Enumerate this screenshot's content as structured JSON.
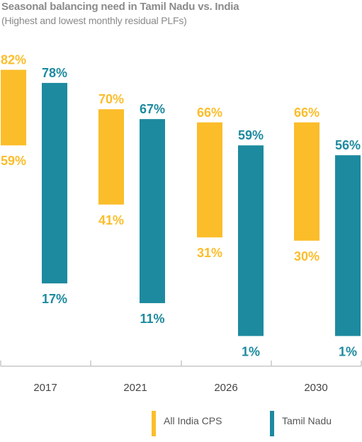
{
  "chart_data": {
    "type": "bar",
    "title": "Seasonal balancing need in Tamil Nadu vs. India",
    "subtitle": "(Highest and lowest monthly residual PLFs)",
    "categories": [
      "2017",
      "2021",
      "2026",
      "2030"
    ],
    "unit": "%",
    "series": [
      {
        "name": "All India CPS",
        "color": "#fbbd2a",
        "high": [
          82,
          70,
          66,
          66
        ],
        "low": [
          59,
          41,
          31,
          30
        ],
        "high_labels": [
          "82%",
          "70%",
          "66%",
          "66%"
        ],
        "low_labels": [
          "59%",
          "41%",
          "31%",
          "30%"
        ]
      },
      {
        "name": "Tamil Nadu",
        "color": "#1d8a9f",
        "high": [
          78,
          67,
          59,
          56
        ],
        "low": [
          17,
          11,
          1,
          1
        ],
        "high_labels": [
          "78%",
          "67%",
          "59%",
          "56%"
        ],
        "low_labels": [
          "17%",
          "11%",
          "1%",
          "1%"
        ]
      }
    ],
    "ylim": [
      0,
      100
    ],
    "legend_position": "bottom-center",
    "grid": false
  }
}
